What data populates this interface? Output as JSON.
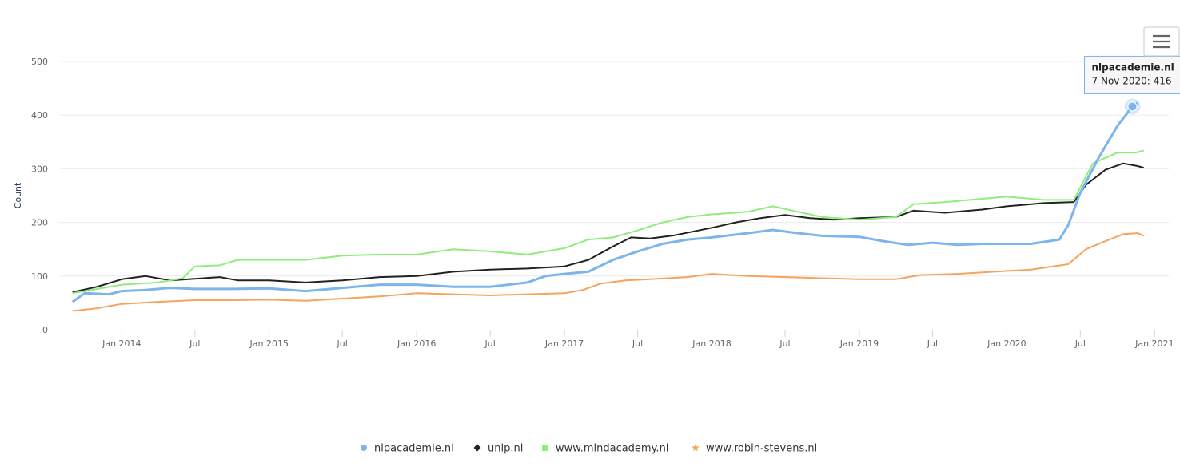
{
  "menu": {
    "icon": "hamburger-menu-icon"
  },
  "chart_data": {
    "type": "line",
    "title": "",
    "xlabel": "",
    "ylabel": "Count",
    "ylim": [
      0,
      500
    ],
    "y_ticks": [
      0,
      100,
      200,
      300,
      400,
      500
    ],
    "x_range": [
      "2013-08-01",
      "2021-02-05"
    ],
    "x_ticks": [
      {
        "date": "2014-01-01",
        "label": "Jan 2014"
      },
      {
        "date": "2014-07-01",
        "label": "Jul"
      },
      {
        "date": "2015-01-01",
        "label": "Jan 2015"
      },
      {
        "date": "2015-07-01",
        "label": "Jul"
      },
      {
        "date": "2016-01-01",
        "label": "Jan 2016"
      },
      {
        "date": "2016-07-01",
        "label": "Jul"
      },
      {
        "date": "2017-01-01",
        "label": "Jan 2017"
      },
      {
        "date": "2017-07-01",
        "label": "Jul"
      },
      {
        "date": "2018-01-01",
        "label": "Jan 2018"
      },
      {
        "date": "2018-07-01",
        "label": "Jul"
      },
      {
        "date": "2019-01-01",
        "label": "Jan 2019"
      },
      {
        "date": "2019-07-01",
        "label": "Jul"
      },
      {
        "date": "2020-01-01",
        "label": "Jan 2020"
      },
      {
        "date": "2020-07-01",
        "label": "Jul"
      },
      {
        "date": "2021-01-01",
        "label": "Jan 2021"
      }
    ],
    "grid": "horizontal",
    "legend_position": "bottom-center",
    "series": [
      {
        "name": "nlpacademie.nl",
        "color": "#7cb5ec",
        "marker": "circle",
        "points": [
          [
            "2013-09-01",
            52
          ],
          [
            "2013-10-01",
            68
          ],
          [
            "2013-12-01",
            66
          ],
          [
            "2014-01-01",
            72
          ],
          [
            "2014-03-01",
            74
          ],
          [
            "2014-05-01",
            78
          ],
          [
            "2014-07-01",
            76
          ],
          [
            "2014-10-01",
            76
          ],
          [
            "2015-01-01",
            77
          ],
          [
            "2015-04-01",
            72
          ],
          [
            "2015-07-01",
            78
          ],
          [
            "2015-10-01",
            84
          ],
          [
            "2016-01-01",
            84
          ],
          [
            "2016-04-01",
            80
          ],
          [
            "2016-07-01",
            80
          ],
          [
            "2016-10-01",
            88
          ],
          [
            "2016-11-15",
            100
          ],
          [
            "2017-01-01",
            104
          ],
          [
            "2017-03-01",
            108
          ],
          [
            "2017-05-01",
            130
          ],
          [
            "2017-07-01",
            146
          ],
          [
            "2017-09-01",
            160
          ],
          [
            "2017-11-01",
            168
          ],
          [
            "2018-01-01",
            172
          ],
          [
            "2018-04-01",
            180
          ],
          [
            "2018-06-01",
            186
          ],
          [
            "2018-08-01",
            180
          ],
          [
            "2018-10-01",
            175
          ],
          [
            "2019-01-01",
            173
          ],
          [
            "2019-03-01",
            165
          ],
          [
            "2019-05-01",
            158
          ],
          [
            "2019-07-01",
            162
          ],
          [
            "2019-09-01",
            158
          ],
          [
            "2019-11-01",
            160
          ],
          [
            "2020-01-01",
            160
          ],
          [
            "2020-03-01",
            160
          ],
          [
            "2020-05-10",
            168
          ],
          [
            "2020-06-01",
            195
          ],
          [
            "2020-07-01",
            255
          ],
          [
            "2020-08-15",
            320
          ],
          [
            "2020-10-01",
            380
          ],
          [
            "2020-11-07",
            416
          ],
          [
            "2020-11-20",
            423
          ]
        ],
        "tooltip": {
          "series": "nlpacademie.nl",
          "text": "7 Nov 2020: 416",
          "date": "2020-11-07",
          "value": 416
        }
      },
      {
        "name": "unlp.nl",
        "color": "#222222",
        "marker": "diamond",
        "points": [
          [
            "2013-09-01",
            70
          ],
          [
            "2013-11-01",
            80
          ],
          [
            "2014-01-01",
            94
          ],
          [
            "2014-03-01",
            100
          ],
          [
            "2014-05-01",
            92
          ],
          [
            "2014-07-01",
            95
          ],
          [
            "2014-09-01",
            98
          ],
          [
            "2014-10-15",
            92
          ],
          [
            "2015-01-01",
            92
          ],
          [
            "2015-04-01",
            88
          ],
          [
            "2015-07-01",
            92
          ],
          [
            "2015-10-01",
            98
          ],
          [
            "2016-01-01",
            100
          ],
          [
            "2016-04-01",
            108
          ],
          [
            "2016-07-01",
            112
          ],
          [
            "2016-10-01",
            114
          ],
          [
            "2017-01-01",
            118
          ],
          [
            "2017-03-01",
            130
          ],
          [
            "2017-05-01",
            155
          ],
          [
            "2017-06-15",
            172
          ],
          [
            "2017-08-01",
            170
          ],
          [
            "2017-10-01",
            176
          ],
          [
            "2018-01-01",
            190
          ],
          [
            "2018-03-01",
            200
          ],
          [
            "2018-05-01",
            208
          ],
          [
            "2018-07-01",
            214
          ],
          [
            "2018-09-01",
            208
          ],
          [
            "2018-11-01",
            205
          ],
          [
            "2019-01-01",
            208
          ],
          [
            "2019-04-01",
            210
          ],
          [
            "2019-05-15",
            222
          ],
          [
            "2019-08-01",
            218
          ],
          [
            "2019-11-01",
            224
          ],
          [
            "2020-01-01",
            230
          ],
          [
            "2020-04-01",
            236
          ],
          [
            "2020-06-15",
            238
          ],
          [
            "2020-07-15",
            270
          ],
          [
            "2020-09-01",
            298
          ],
          [
            "2020-10-15",
            310
          ],
          [
            "2020-11-20",
            305
          ],
          [
            "2020-12-05",
            302
          ]
        ]
      },
      {
        "name": "www.mindacademy.nl",
        "color": "#90ed7d",
        "marker": "square",
        "points": [
          [
            "2013-09-01",
            68
          ],
          [
            "2013-11-01",
            76
          ],
          [
            "2014-01-01",
            84
          ],
          [
            "2014-04-01",
            88
          ],
          [
            "2014-06-01",
            96
          ],
          [
            "2014-07-01",
            118
          ],
          [
            "2014-09-01",
            120
          ],
          [
            "2014-10-15",
            130
          ],
          [
            "2015-01-01",
            130
          ],
          [
            "2015-04-01",
            130
          ],
          [
            "2015-07-01",
            138
          ],
          [
            "2015-10-01",
            140
          ],
          [
            "2016-01-01",
            140
          ],
          [
            "2016-04-01",
            150
          ],
          [
            "2016-07-01",
            146
          ],
          [
            "2016-10-01",
            140
          ],
          [
            "2017-01-01",
            152
          ],
          [
            "2017-03-01",
            168
          ],
          [
            "2017-05-01",
            172
          ],
          [
            "2017-07-01",
            185
          ],
          [
            "2017-09-01",
            200
          ],
          [
            "2017-11-01",
            210
          ],
          [
            "2018-01-01",
            215
          ],
          [
            "2018-04-01",
            220
          ],
          [
            "2018-06-01",
            230
          ],
          [
            "2018-08-01",
            220
          ],
          [
            "2018-10-01",
            210
          ],
          [
            "2019-01-01",
            205
          ],
          [
            "2019-04-01",
            210
          ],
          [
            "2019-05-15",
            234
          ],
          [
            "2019-08-01",
            238
          ],
          [
            "2019-11-01",
            244
          ],
          [
            "2020-01-01",
            248
          ],
          [
            "2020-04-01",
            242
          ],
          [
            "2020-06-15",
            242
          ],
          [
            "2020-08-01",
            310
          ],
          [
            "2020-10-01",
            330
          ],
          [
            "2020-11-15",
            330
          ],
          [
            "2020-12-05",
            334
          ]
        ]
      },
      {
        "name": "www.robin-stevens.nl",
        "color": "#f7a35c",
        "marker": "star",
        "points": [
          [
            "2013-09-01",
            35
          ],
          [
            "2013-11-01",
            40
          ],
          [
            "2014-01-01",
            48
          ],
          [
            "2014-04-01",
            52
          ],
          [
            "2014-07-01",
            55
          ],
          [
            "2014-10-01",
            55
          ],
          [
            "2015-01-01",
            56
          ],
          [
            "2015-04-01",
            54
          ],
          [
            "2015-07-01",
            58
          ],
          [
            "2015-10-01",
            62
          ],
          [
            "2016-01-01",
            68
          ],
          [
            "2016-04-01",
            66
          ],
          [
            "2016-07-01",
            64
          ],
          [
            "2016-10-01",
            66
          ],
          [
            "2017-01-01",
            68
          ],
          [
            "2017-02-15",
            74
          ],
          [
            "2017-04-01",
            86
          ],
          [
            "2017-06-01",
            92
          ],
          [
            "2017-08-01",
            94
          ],
          [
            "2017-11-01",
            98
          ],
          [
            "2018-01-01",
            104
          ],
          [
            "2018-04-01",
            100
          ],
          [
            "2018-07-01",
            98
          ],
          [
            "2018-10-01",
            96
          ],
          [
            "2019-01-01",
            94
          ],
          [
            "2019-04-01",
            94
          ],
          [
            "2019-06-01",
            102
          ],
          [
            "2019-09-01",
            104
          ],
          [
            "2019-12-01",
            108
          ],
          [
            "2020-03-01",
            112
          ],
          [
            "2020-06-01",
            122
          ],
          [
            "2020-07-15",
            150
          ],
          [
            "2020-09-01",
            165
          ],
          [
            "2020-10-15",
            178
          ],
          [
            "2020-11-20",
            180
          ],
          [
            "2020-12-05",
            175
          ]
        ]
      }
    ]
  }
}
